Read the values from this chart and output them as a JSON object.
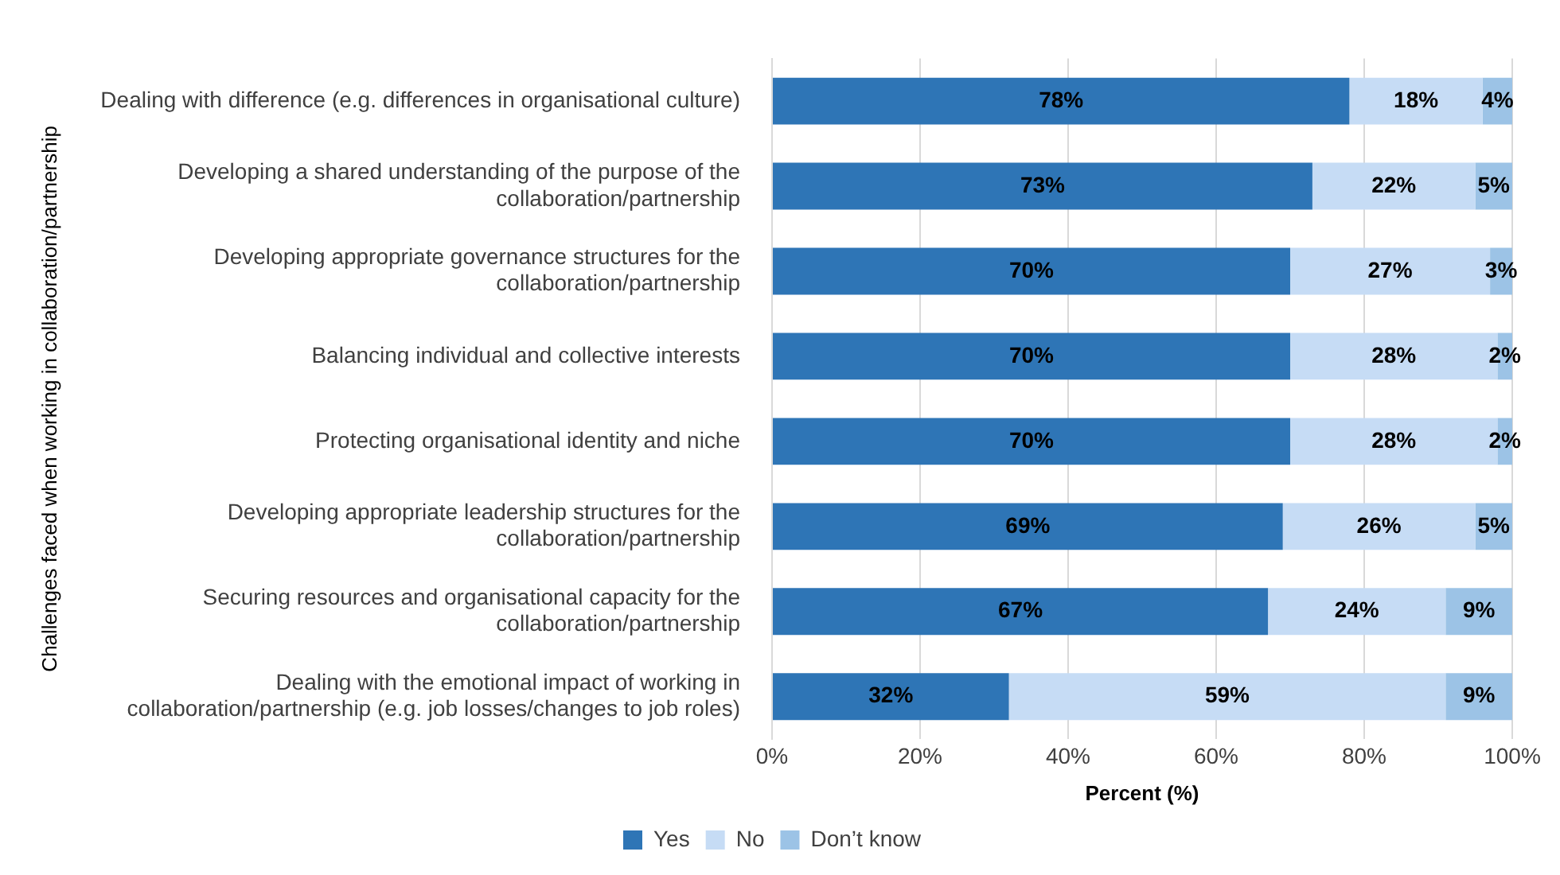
{
  "chart_data": {
    "type": "bar",
    "orientation": "horizontal",
    "stacked": true,
    "xlabel": "Percent (%)",
    "ylabel": "Challenges faced when working in collaboration/partnership",
    "categories": [
      "Dealing with difference (e.g. differences in organisational culture)",
      "Developing a shared understanding of the purpose of the collaboration/partnership",
      "Developing appropriate governance structures for the collaboration/partnership",
      "Balancing individual and collective interests",
      "Protecting organisational identity and niche",
      "Developing appropriate leadership structures for the collaboration/partnership",
      "Securing resources and organisational capacity for the collaboration/partnership",
      "Dealing with the emotional impact of working in collaboration/partnership (e.g. job losses/changes to job roles)"
    ],
    "series": [
      {
        "name": "Yes",
        "color": "#2e75b6",
        "values": [
          78,
          73,
          70,
          70,
          70,
          69,
          67,
          32
        ],
        "value_labels": [
          "78%",
          "73%",
          "70%",
          "70%",
          "70%",
          "69%",
          "67%",
          "32%"
        ]
      },
      {
        "name": "No",
        "color": "#c6dcf5",
        "values": [
          18,
          22,
          27,
          28,
          28,
          26,
          24,
          59
        ],
        "value_labels": [
          "18%",
          "22%",
          "27%",
          "28%",
          "28%",
          "26%",
          "24%",
          "59%"
        ]
      },
      {
        "name": "Don’t know",
        "color": "#9cc3e6",
        "values": [
          4,
          5,
          3,
          2,
          2,
          5,
          9,
          9
        ],
        "value_labels": [
          "4%",
          "5%",
          "3%",
          "2%",
          "2%",
          "5%",
          "9%",
          "9%"
        ]
      }
    ],
    "xlim": [
      0,
      100
    ],
    "xticks": [
      {
        "value": 0,
        "label": "0%"
      },
      {
        "value": 20,
        "label": "20%"
      },
      {
        "value": 40,
        "label": "40%"
      },
      {
        "value": 60,
        "label": "60%"
      },
      {
        "value": 80,
        "label": "80%"
      },
      {
        "value": 100,
        "label": "100%"
      }
    ],
    "grid": "x",
    "legend": "bottom"
  }
}
